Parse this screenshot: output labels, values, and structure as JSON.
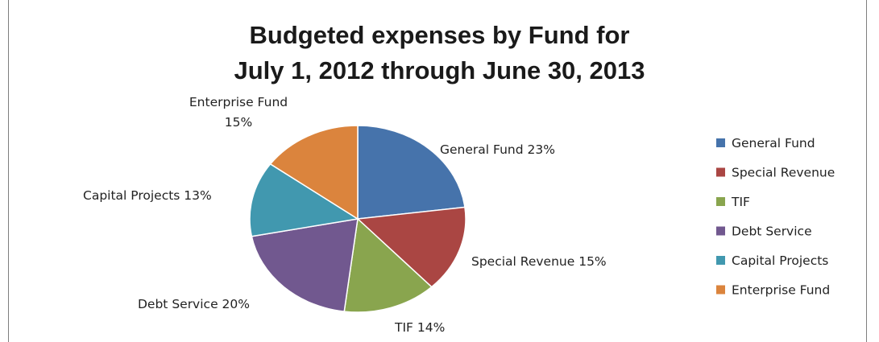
{
  "chart_data": {
    "type": "pie",
    "title_line1": "Budgeted expenses by Fund for",
    "title_line2": "July 1, 2012 through June 30, 2013",
    "slices": [
      {
        "name": "General Fund",
        "value": 23,
        "label": "General Fund 23%",
        "color": "#4673ab"
      },
      {
        "name": "Special Revenue",
        "value": 15,
        "label": "Special Revenue 15%",
        "color": "#aa4643"
      },
      {
        "name": "TIF",
        "value": 14,
        "label": "TIF 14%",
        "color": "#89a54e"
      },
      {
        "name": "Debt Service",
        "value": 20,
        "label": "Debt Service 20%",
        "color": "#71588f"
      },
      {
        "name": "Capital Projects",
        "value": 13,
        "label": "Capital Projects 13%",
        "color": "#4198af"
      },
      {
        "name": "Enterprise Fund",
        "value": 15,
        "label_line1": "Enterprise Fund",
        "label_line2": "15%",
        "color": "#db843d"
      }
    ],
    "legend_position": "right"
  }
}
